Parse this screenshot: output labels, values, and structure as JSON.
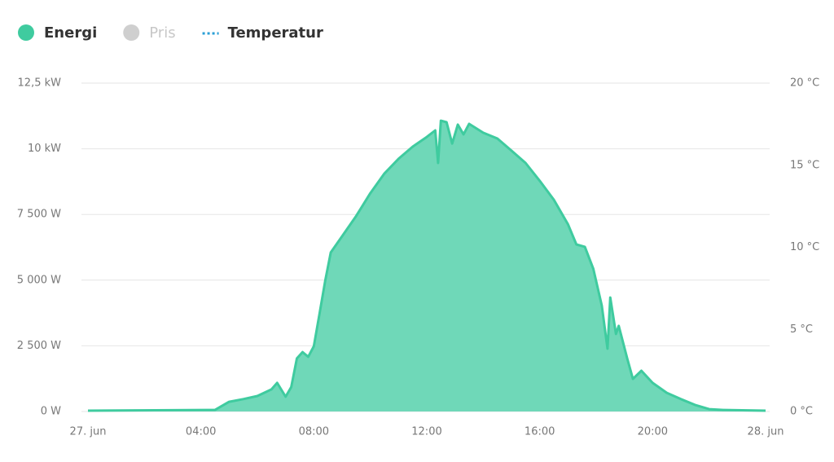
{
  "chart_data": {
    "type": "area",
    "legend": [
      {
        "name": "Energi",
        "color": "#3fcb9f",
        "marker": "dot",
        "hidden": false
      },
      {
        "name": "Pris",
        "color": "#cfcfcf",
        "marker": "dot",
        "hidden": true
      },
      {
        "name": "Temperatur",
        "color": "#2a9fd6",
        "marker": "dotted-line",
        "hidden": false
      }
    ],
    "x": [
      0,
      4.5,
      5,
      5.5,
      6,
      6.5,
      6.7,
      7,
      7.2,
      7.4,
      7.6,
      7.8,
      8,
      8.2,
      8.4,
      8.6,
      9,
      9.5,
      10,
      10.5,
      11,
      11.5,
      12,
      12.3,
      12.4,
      12.5,
      12.7,
      12.9,
      13.1,
      13.3,
      13.5,
      14,
      14.5,
      15,
      15.5,
      16,
      16.5,
      17,
      17.3,
      17.6,
      17.9,
      18.2,
      18.4,
      18.5,
      18.7,
      18.8,
      19.1,
      19.3,
      19.6,
      20,
      20.5,
      21,
      21.5,
      22,
      22.5,
      24
    ],
    "series": [
      {
        "name": "Energi",
        "color": "#3fcb9f",
        "fill": "#6fd8b8",
        "values": [
          30,
          60,
          370,
          470,
          590,
          840,
          1090,
          560,
          930,
          2020,
          2260,
          2080,
          2480,
          3720,
          4960,
          6050,
          6670,
          7440,
          8310,
          9060,
          9620,
          10080,
          10450,
          10700,
          9460,
          11070,
          11010,
          10200,
          10920,
          10550,
          10950,
          10610,
          10390,
          9930,
          9460,
          8780,
          8060,
          7130,
          6360,
          6270,
          5430,
          4030,
          2390,
          4340,
          2950,
          3260,
          2020,
          1240,
          1550,
          1090,
          710,
          470,
          250,
          90,
          60,
          30
        ]
      }
    ],
    "xlim": [
      0,
      24
    ],
    "xticks": [
      {
        "value": 0,
        "label": "27. jun"
      },
      {
        "value": 4,
        "label": "04:00"
      },
      {
        "value": 8,
        "label": "08:00"
      },
      {
        "value": 12,
        "label": "12:00"
      },
      {
        "value": 16,
        "label": "16:00"
      },
      {
        "value": 20,
        "label": "20:00"
      },
      {
        "value": 24,
        "label": "28. jun"
      }
    ],
    "ylim": [
      0,
      12500
    ],
    "yticks": [
      {
        "value": 0,
        "label": "0 W"
      },
      {
        "value": 2500,
        "label": "2 500 W"
      },
      {
        "value": 5000,
        "label": "5 000 W"
      },
      {
        "value": 7500,
        "label": "7 500 W"
      },
      {
        "value": 10000,
        "label": "10 kW"
      },
      {
        "value": 12500,
        "label": "12,5 kW"
      }
    ],
    "y2lim": [
      0,
      20
    ],
    "y2ticks": [
      {
        "value": 0,
        "label": "0 °C"
      },
      {
        "value": 5,
        "label": "5 °C"
      },
      {
        "value": 10,
        "label": "10 °C"
      },
      {
        "value": 15,
        "label": "15 °C"
      },
      {
        "value": 20,
        "label": "20 °C"
      }
    ],
    "grid": true
  }
}
